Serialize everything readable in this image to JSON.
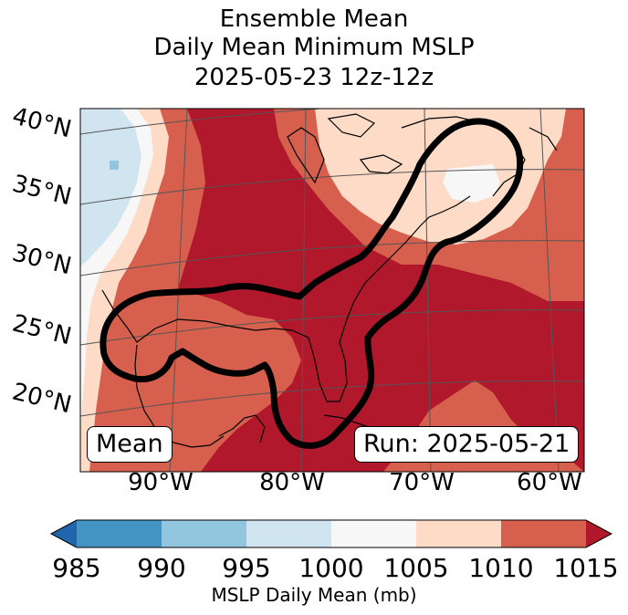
{
  "title": {
    "line1": "Ensemble Mean",
    "line2": "Daily Mean Minimum MSLP",
    "line3": "2025-05-23 12z-12z"
  },
  "map": {
    "lat_labels": [
      "40°N",
      "35°N",
      "30°N",
      "25°N",
      "20°N"
    ],
    "lon_labels": [
      "90°W",
      "80°W",
      "70°W",
      "60°W"
    ],
    "mean_label": "Mean",
    "run_label": "Run: 2025-05-21"
  },
  "colorbar": {
    "label": "MSLP Daily Mean (mb)",
    "ticks": [
      "985",
      "990",
      "995",
      "1000",
      "1005",
      "1010",
      "1015"
    ],
    "bins": [
      {
        "range": "985-990",
        "color": "#4393c3"
      },
      {
        "range": "990-995",
        "color": "#92c5de"
      },
      {
        "range": "995-1000",
        "color": "#d1e5f0"
      },
      {
        "range": "1000-1005",
        "color": "#f7f7f7"
      },
      {
        "range": "1005-1010",
        "color": "#fddbc7"
      },
      {
        "range": "1010-1015",
        "color": "#d6604d"
      }
    ],
    "under_color": "#2166ac",
    "over_color": "#b2182b"
  }
}
